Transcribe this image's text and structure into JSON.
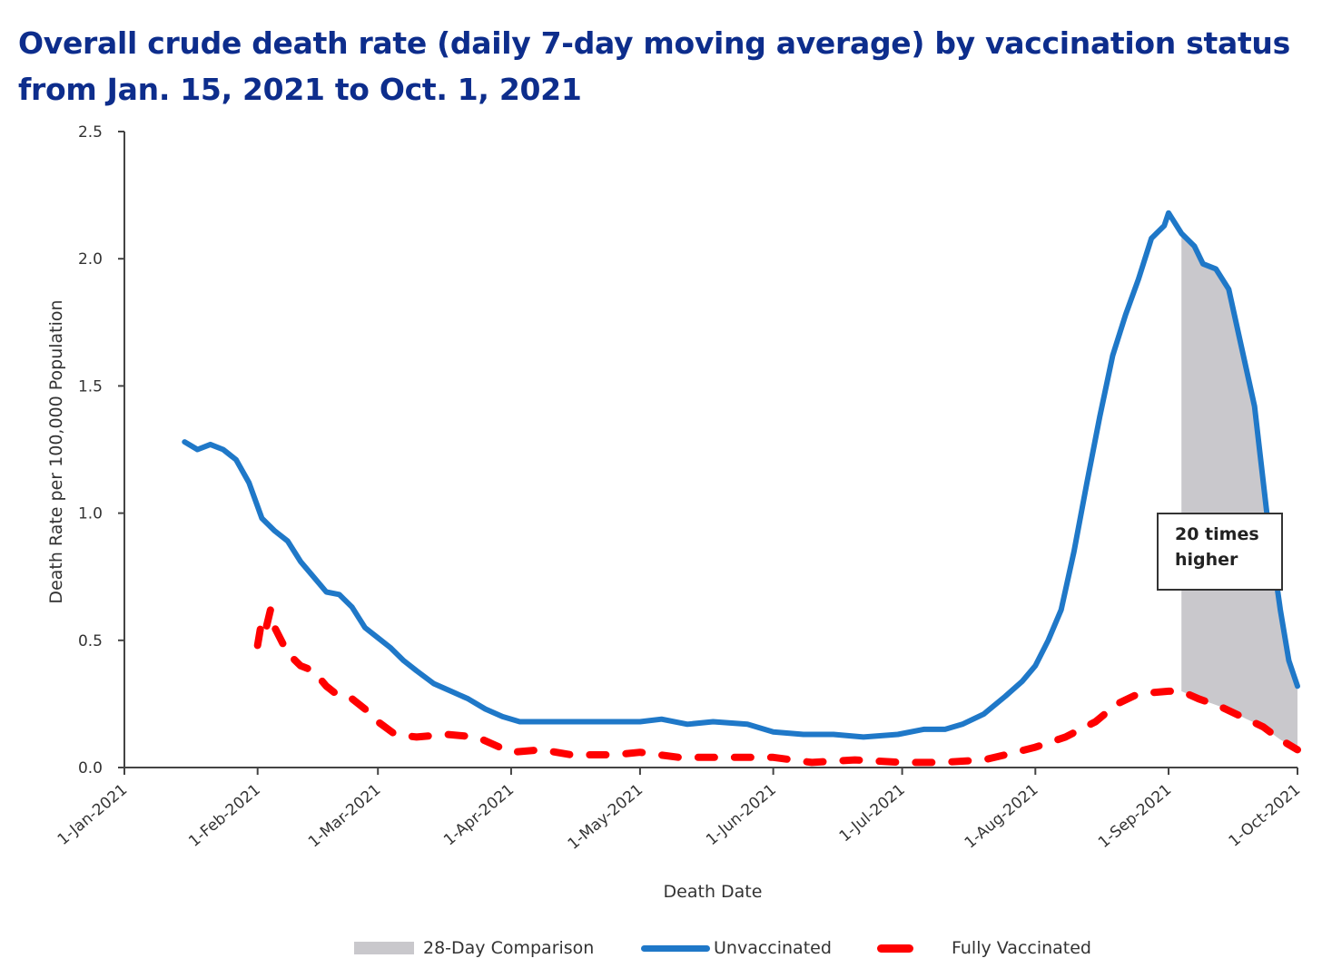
{
  "chart_data": {
    "type": "line",
    "title": "Overall crude death rate (daily 7-day moving average) by vaccination status from Jan. 15, 2021 to Oct. 1, 2021",
    "title_lines": [
      "Overall crude death rate (daily 7-day moving average) by vaccination status",
      "from Jan. 15, 2021 to Oct. 1, 2021"
    ],
    "xlabel": "Death Date",
    "ylabel": "Death Rate per 100,000 Population",
    "x_tick_labels": [
      "1-Jan-2021",
      "1-Feb-2021",
      "1-Mar-2021",
      "1-Apr-2021",
      "1-May-2021",
      "1-Jun-2021",
      "1-Jul-2021",
      "1-Aug-2021",
      "1-Sep-2021",
      "1-Oct-2021"
    ],
    "y_tick_labels": [
      "0.0",
      "0.5",
      "1.0",
      "1.5",
      "2.0",
      "2.5"
    ],
    "xlim": [
      "2021-01-01",
      "2021-10-01"
    ],
    "ylim": [
      0,
      2.5
    ],
    "grid": false,
    "legend_position": "bottom",
    "annotation": [
      "20 times",
      "higher"
    ],
    "colors": {
      "unvaccinated": "#1f78c8",
      "fully_vaccinated": "#ff0000",
      "comparison": "#c9c8cc",
      "title": "#0d2d8c"
    },
    "series": [
      {
        "name": "Unvaccinated",
        "style": "solid",
        "points": [
          [
            "2021-01-15",
            1.28
          ],
          [
            "2021-01-18",
            1.25
          ],
          [
            "2021-01-21",
            1.27
          ],
          [
            "2021-01-24",
            1.25
          ],
          [
            "2021-01-27",
            1.21
          ],
          [
            "2021-01-30",
            1.12
          ],
          [
            "2021-02-02",
            0.98
          ],
          [
            "2021-02-05",
            0.93
          ],
          [
            "2021-02-08",
            0.89
          ],
          [
            "2021-02-11",
            0.81
          ],
          [
            "2021-02-14",
            0.75
          ],
          [
            "2021-02-17",
            0.69
          ],
          [
            "2021-02-20",
            0.68
          ],
          [
            "2021-02-23",
            0.63
          ],
          [
            "2021-02-26",
            0.55
          ],
          [
            "2021-03-01",
            0.51
          ],
          [
            "2021-03-04",
            0.47
          ],
          [
            "2021-03-07",
            0.42
          ],
          [
            "2021-03-10",
            0.38
          ],
          [
            "2021-03-14",
            0.33
          ],
          [
            "2021-03-18",
            0.3
          ],
          [
            "2021-03-22",
            0.27
          ],
          [
            "2021-03-26",
            0.23
          ],
          [
            "2021-03-30",
            0.2
          ],
          [
            "2021-04-03",
            0.18
          ],
          [
            "2021-04-10",
            0.18
          ],
          [
            "2021-04-20",
            0.18
          ],
          [
            "2021-05-01",
            0.18
          ],
          [
            "2021-05-06",
            0.19
          ],
          [
            "2021-05-12",
            0.17
          ],
          [
            "2021-05-18",
            0.18
          ],
          [
            "2021-05-26",
            0.17
          ],
          [
            "2021-06-01",
            0.14
          ],
          [
            "2021-06-08",
            0.13
          ],
          [
            "2021-06-15",
            0.13
          ],
          [
            "2021-06-22",
            0.12
          ],
          [
            "2021-06-30",
            0.13
          ],
          [
            "2021-07-06",
            0.15
          ],
          [
            "2021-07-11",
            0.15
          ],
          [
            "2021-07-15",
            0.17
          ],
          [
            "2021-07-20",
            0.21
          ],
          [
            "2021-07-25",
            0.28
          ],
          [
            "2021-07-29",
            0.34
          ],
          [
            "2021-08-01",
            0.4
          ],
          [
            "2021-08-04",
            0.5
          ],
          [
            "2021-08-07",
            0.62
          ],
          [
            "2021-08-10",
            0.85
          ],
          [
            "2021-08-13",
            1.12
          ],
          [
            "2021-08-16",
            1.38
          ],
          [
            "2021-08-19",
            1.62
          ],
          [
            "2021-08-22",
            1.78
          ],
          [
            "2021-08-25",
            1.92
          ],
          [
            "2021-08-28",
            2.08
          ],
          [
            "2021-08-31",
            2.13
          ],
          [
            "2021-09-01",
            2.18
          ],
          [
            "2021-09-04",
            2.1
          ],
          [
            "2021-09-07",
            2.05
          ],
          [
            "2021-09-09",
            1.98
          ],
          [
            "2021-09-12",
            1.96
          ],
          [
            "2021-09-15",
            1.88
          ],
          [
            "2021-09-18",
            1.65
          ],
          [
            "2021-09-21",
            1.42
          ],
          [
            "2021-09-24",
            0.98
          ],
          [
            "2021-09-27",
            0.62
          ],
          [
            "2021-09-29",
            0.42
          ],
          [
            "2021-10-01",
            0.32
          ]
        ]
      },
      {
        "name": "Fully Vaccinated",
        "style": "dashed",
        "points": [
          [
            "2021-02-01",
            0.48
          ],
          [
            "2021-02-02",
            0.58
          ],
          [
            "2021-02-03",
            0.55
          ],
          [
            "2021-02-04",
            0.62
          ],
          [
            "2021-02-05",
            0.55
          ],
          [
            "2021-02-08",
            0.45
          ],
          [
            "2021-02-11",
            0.4
          ],
          [
            "2021-02-14",
            0.38
          ],
          [
            "2021-02-17",
            0.32
          ],
          [
            "2021-02-20",
            0.28
          ],
          [
            "2021-02-23",
            0.27
          ],
          [
            "2021-02-26",
            0.23
          ],
          [
            "2021-03-01",
            0.18
          ],
          [
            "2021-03-05",
            0.13
          ],
          [
            "2021-03-10",
            0.12
          ],
          [
            "2021-03-17",
            0.13
          ],
          [
            "2021-03-24",
            0.12
          ],
          [
            "2021-04-01",
            0.06
          ],
          [
            "2021-04-08",
            0.07
          ],
          [
            "2021-04-15",
            0.05
          ],
          [
            "2021-04-25",
            0.05
          ],
          [
            "2021-05-01",
            0.06
          ],
          [
            "2021-05-10",
            0.04
          ],
          [
            "2021-05-20",
            0.04
          ],
          [
            "2021-06-01",
            0.04
          ],
          [
            "2021-06-10",
            0.02
          ],
          [
            "2021-06-20",
            0.03
          ],
          [
            "2021-07-01",
            0.02
          ],
          [
            "2021-07-10",
            0.02
          ],
          [
            "2021-07-20",
            0.03
          ],
          [
            "2021-07-25",
            0.05
          ],
          [
            "2021-08-01",
            0.08
          ],
          [
            "2021-08-08",
            0.12
          ],
          [
            "2021-08-15",
            0.18
          ],
          [
            "2021-08-20",
            0.25
          ],
          [
            "2021-08-25",
            0.29
          ],
          [
            "2021-09-01",
            0.3
          ],
          [
            "2021-09-04",
            0.3
          ],
          [
            "2021-09-08",
            0.27
          ],
          [
            "2021-09-13",
            0.24
          ],
          [
            "2021-09-18",
            0.2
          ],
          [
            "2021-09-23",
            0.16
          ],
          [
            "2021-09-27",
            0.11
          ],
          [
            "2021-10-01",
            0.07
          ]
        ]
      }
    ],
    "comparison_band": {
      "name": "28-Day Comparison",
      "start": "2021-09-04",
      "end": "2021-10-01"
    }
  }
}
